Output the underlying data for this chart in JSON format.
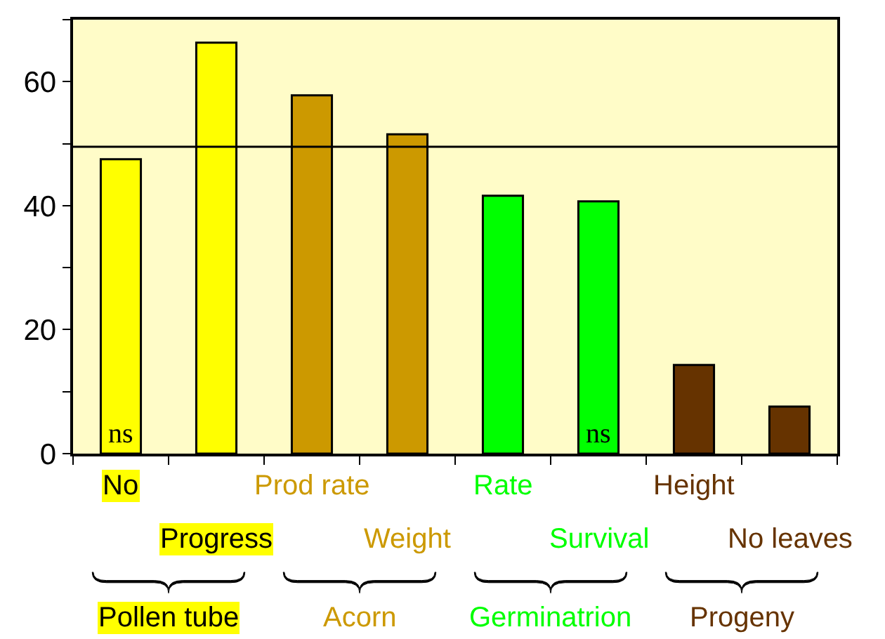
{
  "chart_data": {
    "type": "bar",
    "categories": [
      "No",
      "Progress",
      "Prod rate",
      "Weight",
      "Rate",
      "Survival",
      "Height",
      "No leaves"
    ],
    "values": [
      47.5,
      66.3,
      57.8,
      51.5,
      41.6,
      40.7,
      14.3,
      7.6
    ],
    "colors": [
      "#ffff00",
      "#ffff00",
      "#cc9900",
      "#cc9900",
      "#00ff00",
      "#00ff00",
      "#663300",
      "#663300"
    ],
    "value_labels": [
      "ns",
      null,
      null,
      null,
      null,
      "ns",
      null,
      null
    ],
    "ylim": [
      0,
      70
    ],
    "yticks": [
      0,
      {
        "value": 10,
        "label": null
      },
      20,
      {
        "value": 30,
        "label": null
      },
      40,
      {
        "value": 50,
        "label": null
      },
      60,
      {
        "value": 70,
        "label": null
      }
    ],
    "ref_lines": [
      {
        "axis": "y",
        "value": 49.5
      }
    ],
    "annotations": [
      "Pollen tube",
      "Acorn",
      "Germinatrion",
      "Progeny"
    ],
    "grid": false
  }
}
